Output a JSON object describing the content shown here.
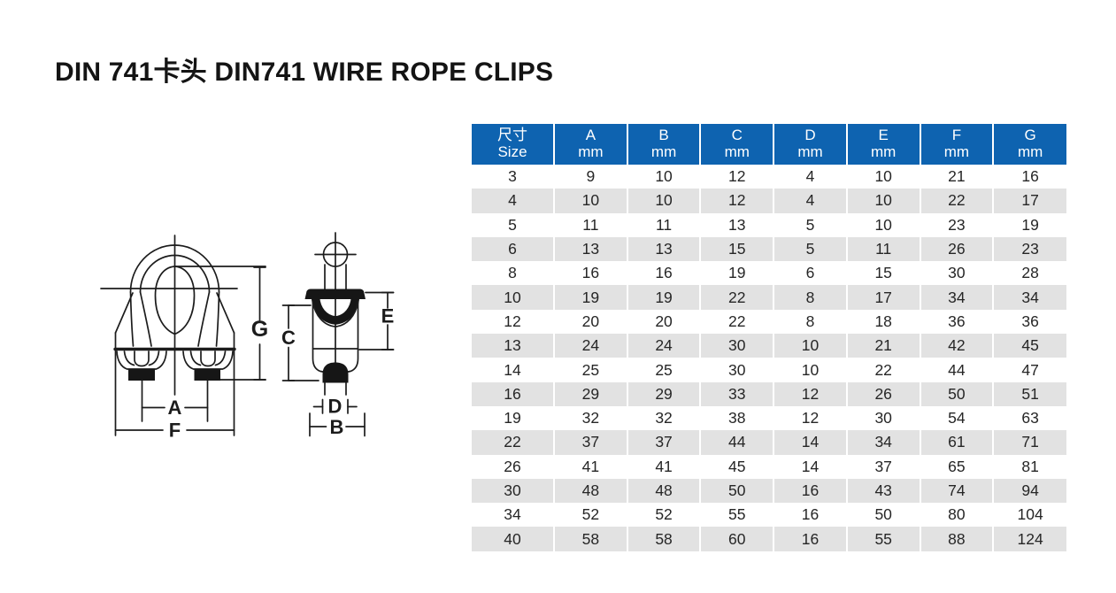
{
  "title": "DIN 741卡头 DIN741 WIRE ROPE CLIPS",
  "colors": {
    "header_bg": "#0e63b0",
    "row_alt": "#e2e2e2",
    "cell_text": "#262626",
    "line_color": "#1c1c1c"
  },
  "diagram": {
    "description": "wire-rope-clip-technical-drawing",
    "labels": {
      "g": "G",
      "a": "A",
      "f": "F",
      "c": "C",
      "e": "E",
      "d": "D",
      "b": "B"
    }
  },
  "table": {
    "header": {
      "size_cn": "尺寸",
      "size_en": "Size",
      "columns": [
        {
          "letter": "A",
          "unit": "mm"
        },
        {
          "letter": "B",
          "unit": "mm"
        },
        {
          "letter": "C",
          "unit": "mm"
        },
        {
          "letter": "D",
          "unit": "mm"
        },
        {
          "letter": "E",
          "unit": "mm"
        },
        {
          "letter": "F",
          "unit": "mm"
        },
        {
          "letter": "G",
          "unit": "mm"
        }
      ]
    },
    "rows": [
      [
        "3",
        "9",
        "10",
        "12",
        "4",
        "10",
        "21",
        "16"
      ],
      [
        "4",
        "10",
        "10",
        "12",
        "4",
        "10",
        "22",
        "17"
      ],
      [
        "5",
        "11",
        "11",
        "13",
        "5",
        "10",
        "23",
        "19"
      ],
      [
        "6",
        "13",
        "13",
        "15",
        "5",
        "11",
        "26",
        "23"
      ],
      [
        "8",
        "16",
        "16",
        "19",
        "6",
        "15",
        "30",
        "28"
      ],
      [
        "10",
        "19",
        "19",
        "22",
        "8",
        "17",
        "34",
        "34"
      ],
      [
        "12",
        "20",
        "20",
        "22",
        "8",
        "18",
        "36",
        "36"
      ],
      [
        "13",
        "24",
        "24",
        "30",
        "10",
        "21",
        "42",
        "45"
      ],
      [
        "14",
        "25",
        "25",
        "30",
        "10",
        "22",
        "44",
        "47"
      ],
      [
        "16",
        "29",
        "29",
        "33",
        "12",
        "26",
        "50",
        "51"
      ],
      [
        "19",
        "32",
        "32",
        "38",
        "12",
        "30",
        "54",
        "63"
      ],
      [
        "22",
        "37",
        "37",
        "44",
        "14",
        "34",
        "61",
        "71"
      ],
      [
        "26",
        "41",
        "41",
        "45",
        "14",
        "37",
        "65",
        "81"
      ],
      [
        "30",
        "48",
        "48",
        "50",
        "16",
        "43",
        "74",
        "94"
      ],
      [
        "34",
        "52",
        "52",
        "55",
        "16",
        "50",
        "80",
        "104"
      ],
      [
        "40",
        "58",
        "58",
        "60",
        "16",
        "55",
        "88",
        "124"
      ]
    ]
  }
}
